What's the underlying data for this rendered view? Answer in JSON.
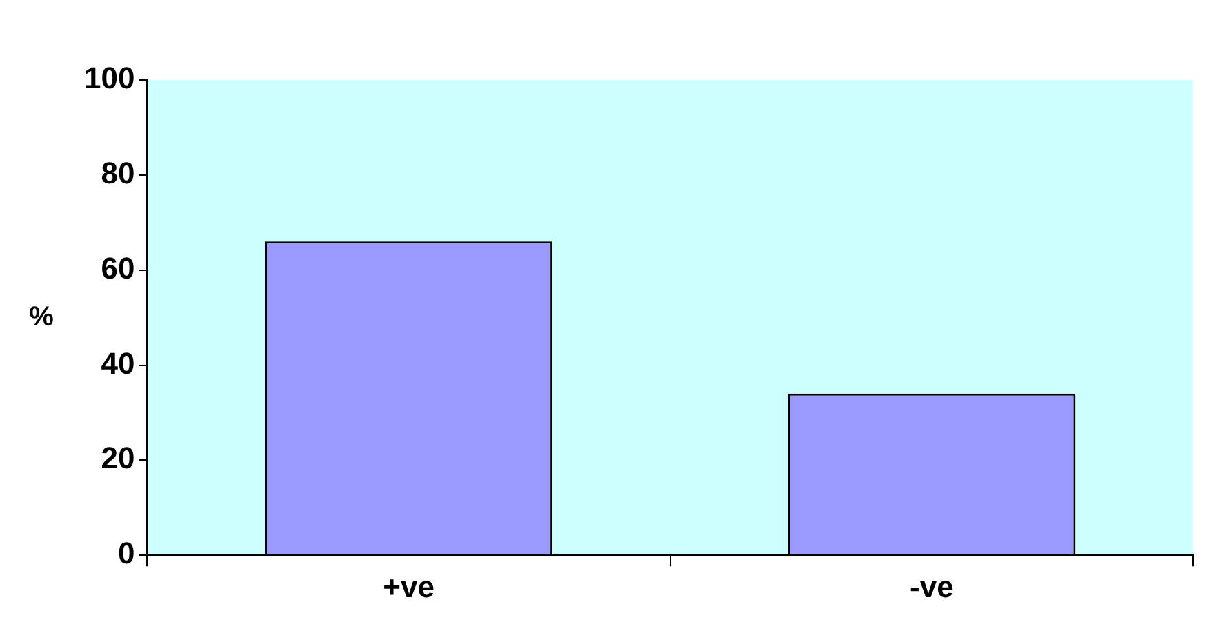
{
  "chart_data": {
    "type": "bar",
    "ylabel": "%",
    "categories": [
      "+ve",
      "-ve"
    ],
    "values": [
      66,
      34
    ],
    "color": "#9999ff",
    "ylim": [
      0,
      100
    ],
    "yticks": [
      0,
      20,
      40,
      60,
      80,
      100
    ],
    "grid": false,
    "legend": false
  }
}
